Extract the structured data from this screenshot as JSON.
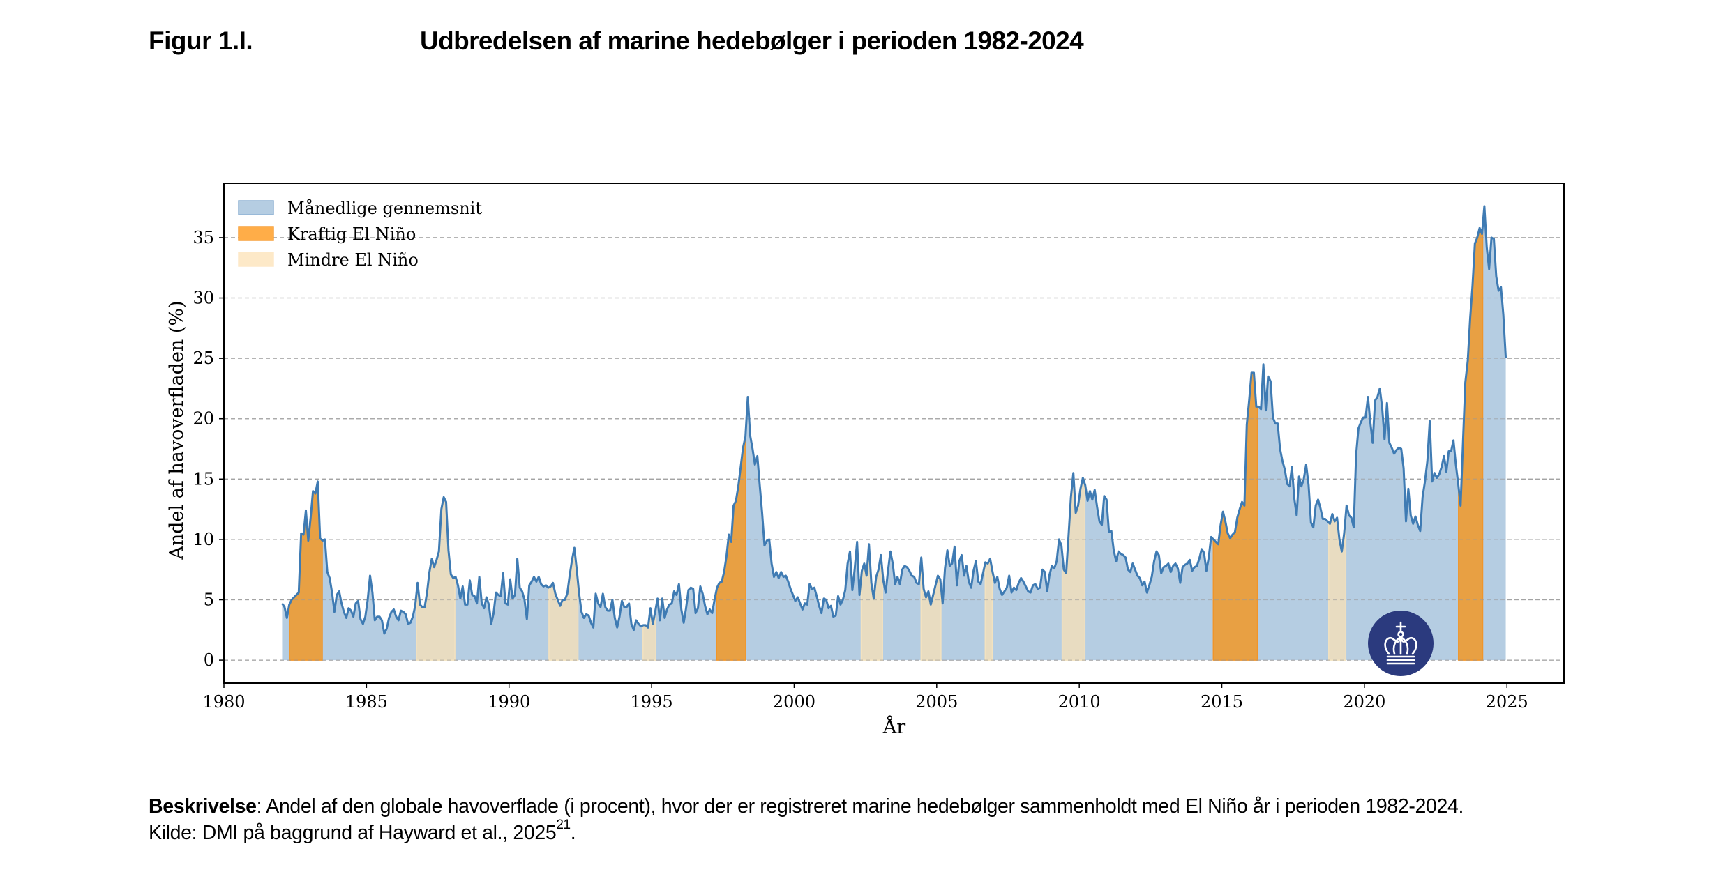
{
  "header": {
    "figure_label": "Figur 1.I.",
    "figure_title": "Udbredelsen af marine hedebølger i perioden 1982-2024"
  },
  "caption": {
    "description_label": "Beskrivelse",
    "description_text": ": Andel af den globale havoverflade (i procent), hvor der er registreret marine hedebølger sammenholdt med El Niño år i perioden 1982-2024.",
    "source_text": "Kilde: DMI på baggrund af Hayward et al., 2025",
    "source_ref": "21",
    "source_end": "."
  },
  "logo": {
    "name": "crown-logo",
    "color": "#2b3a7e"
  },
  "colors": {
    "line": "#3f7bb3",
    "area": "#b5cde2",
    "strong": "#e8a043",
    "weak": "#e8dcc1",
    "legend_strong": "#ffad48",
    "legend_weak": "#fde9c8",
    "legend_area": "#b5cde2",
    "grid": "#b0b0b0"
  },
  "chart_data": {
    "type": "area",
    "title": "",
    "xlabel": "År",
    "ylabel": "Andel af havoverfladen (%)",
    "xlim": [
      1980,
      2027
    ],
    "ylim": [
      -1.9,
      39.5
    ],
    "xticks": [
      1980,
      1985,
      1990,
      1995,
      2000,
      2005,
      2010,
      2015,
      2020,
      2025
    ],
    "xtick_labels": [
      "1980",
      "1985",
      "1990",
      "1995",
      "2000",
      "2005",
      "2010",
      "2015",
      "2020",
      "2025"
    ],
    "yticks": [
      0,
      5,
      10,
      15,
      20,
      25,
      30,
      35
    ],
    "ytick_labels": [
      "0",
      "5",
      "10",
      "15",
      "20",
      "25",
      "30",
      "35"
    ],
    "grid": "horizontal dashed",
    "legend_position": "top-left",
    "legend": [
      {
        "key": "monthly",
        "label": "Månedlige gennemsnit"
      },
      {
        "key": "strong",
        "label": "Kraftig El Niño"
      },
      {
        "key": "weak",
        "label": "Mindre El Niño"
      }
    ],
    "x_start": 1982.0,
    "x_step_months": 1,
    "series": [
      {
        "name": "Månedlige gennemsnit",
        "values": [
          4.7,
          4.4,
          3.5,
          4.6,
          5.0,
          5.2,
          5.4,
          5.6,
          10.5,
          10.4,
          12.4,
          9.9,
          11.8,
          14.0,
          13.8,
          14.8,
          10.1,
          9.9,
          10.0,
          7.3,
          6.8,
          5.6,
          4.0,
          5.4,
          5.7,
          4.7,
          4.0,
          3.5,
          4.3,
          4.1,
          3.6,
          4.7,
          4.9,
          3.4,
          3.0,
          3.6,
          5.0,
          7.0,
          5.6,
          3.3,
          3.6,
          3.6,
          3.3,
          2.2,
          2.6,
          3.5,
          4.0,
          4.2,
          3.6,
          3.3,
          4.1,
          4.0,
          3.8,
          3.0,
          3.1,
          3.6,
          4.5,
          6.4,
          4.6,
          4.4,
          4.4,
          5.6,
          7.3,
          8.4,
          7.7,
          8.3,
          9.0,
          12.5,
          13.5,
          13.1,
          9.1,
          7.1,
          6.8,
          6.9,
          6.2,
          5.1,
          6.1,
          4.6,
          4.6,
          6.6,
          5.4,
          5.3,
          4.7,
          6.9,
          4.7,
          4.3,
          5.2,
          4.6,
          3.0,
          3.9,
          5.6,
          5.4,
          5.3,
          7.2,
          4.7,
          4.6,
          6.7,
          5.1,
          5.4,
          8.4,
          6.0,
          5.7,
          5.0,
          3.4,
          6.2,
          6.5,
          6.9,
          6.5,
          6.9,
          6.3,
          6.1,
          6.2,
          6.0,
          6.1,
          6.4,
          5.5,
          5.0,
          4.5,
          5.0,
          5.0,
          5.5,
          7.0,
          8.3,
          9.3,
          7.5,
          5.5,
          4.0,
          3.5,
          3.8,
          3.7,
          3.1,
          2.7,
          5.5,
          4.7,
          4.4,
          5.5,
          4.4,
          4.1,
          4.1,
          5.0,
          3.5,
          2.7,
          3.6,
          4.9,
          4.4,
          4.4,
          4.7,
          3.0,
          2.5,
          3.3,
          3.0,
          2.8,
          2.9,
          2.9,
          2.7,
          4.3,
          3.0,
          4.0,
          5.1,
          3.3,
          5.1,
          3.5,
          4.2,
          4.6,
          4.7,
          5.7,
          5.4,
          6.3,
          4.2,
          3.1,
          4.3,
          5.8,
          6.0,
          5.9,
          3.9,
          4.3,
          6.1,
          5.5,
          4.5,
          3.8,
          4.2,
          3.9,
          5.0,
          6.0,
          6.4,
          6.5,
          7.3,
          8.6,
          10.4,
          9.8,
          12.8,
          13.2,
          14.4,
          16.0,
          17.6,
          18.5,
          21.8,
          18.6,
          17.5,
          16.2,
          16.9,
          14.5,
          12.2,
          9.5,
          9.9,
          10.0,
          8.0,
          6.9,
          7.3,
          6.8,
          7.3,
          6.9,
          7.0,
          6.5,
          5.9,
          5.4,
          4.9,
          5.2,
          4.7,
          4.2,
          4.7,
          4.6,
          6.3,
          5.9,
          6.0,
          5.3,
          4.5,
          3.9,
          5.1,
          5.0,
          4.3,
          4.5,
          3.6,
          3.7,
          5.3,
          4.6,
          5.0,
          5.8,
          8.0,
          9.0,
          5.8,
          7.6,
          9.8,
          5.4,
          7.4,
          8.0,
          7.0,
          9.6,
          6.4,
          5.1,
          6.9,
          7.5,
          8.7,
          6.6,
          5.6,
          7.4,
          9.0,
          8.0,
          6.3,
          6.9,
          6.3,
          7.5,
          7.8,
          7.7,
          7.4,
          7.0,
          6.9,
          6.4,
          6.3,
          8.5,
          5.9,
          5.2,
          5.7,
          4.6,
          5.4,
          6.2,
          7.0,
          6.7,
          4.7,
          7.6,
          9.1,
          7.8,
          8.0,
          9.4,
          6.2,
          8.2,
          8.7,
          7.0,
          7.8,
          6.5,
          6.0,
          7.4,
          8.2,
          6.5,
          6.3,
          7.2,
          8.1,
          8.0,
          8.4,
          7.3,
          6.4,
          6.9,
          5.9,
          5.4,
          5.7,
          6.0,
          7.0,
          5.6,
          6.0,
          5.8,
          6.4,
          6.8,
          6.5,
          6.1,
          5.7,
          5.6,
          6.2,
          6.3,
          5.9,
          6.0,
          7.5,
          7.3,
          5.7,
          7.1,
          7.8,
          7.6,
          8.2,
          10.0,
          9.5,
          7.5,
          7.2,
          10.3,
          13.5,
          15.5,
          12.2,
          12.8,
          14.2,
          15.1,
          14.5,
          13.2,
          14.0,
          13.3,
          14.1,
          12.7,
          11.5,
          11.2,
          13.6,
          13.3,
          10.6,
          10.7,
          9.1,
          8.2,
          9.0,
          8.8,
          8.7,
          8.5,
          7.5,
          7.3,
          8.0,
          7.5,
          7.0,
          6.8,
          6.2,
          6.5,
          5.6,
          6.2,
          6.9,
          8.2,
          9.0,
          8.7,
          7.2,
          7.7,
          7.8,
          8.0,
          7.3,
          7.8,
          8.0,
          7.6,
          6.4,
          7.7,
          7.9,
          8.0,
          8.3,
          7.4,
          7.7,
          7.8,
          8.4,
          9.2,
          8.9,
          7.4,
          8.5,
          10.2,
          10.0,
          9.8,
          9.6,
          11.2,
          12.3,
          11.5,
          10.5,
          10.1,
          10.4,
          10.6,
          11.8,
          12.5,
          13.1,
          12.8,
          19.5,
          21.5,
          23.8,
          23.8,
          21.0,
          21.0,
          20.8,
          24.5,
          20.7,
          23.5,
          23.1,
          20.1,
          19.6,
          19.6,
          17.5,
          16.5,
          15.8,
          14.6,
          14.4,
          16.0,
          13.4,
          12.0,
          15.2,
          14.4,
          15.0,
          16.2,
          14.5,
          11.4,
          11.0,
          12.8,
          13.3,
          12.6,
          11.7,
          11.7,
          11.5,
          11.3,
          12.1,
          11.5,
          11.8,
          10.0,
          9.0,
          10.5,
          12.8,
          12.0,
          11.8,
          11.0,
          17.0,
          19.2,
          19.7,
          20.1,
          20.1,
          21.8,
          19.7,
          18.0,
          21.5,
          21.8,
          22.5,
          20.9,
          18.3,
          21.3,
          18.0,
          17.6,
          17.1,
          17.4,
          17.6,
          17.5,
          15.9,
          11.5,
          14.2,
          12.0,
          11.3,
          11.9,
          11.2,
          10.7,
          13.5,
          14.8,
          16.5,
          19.8,
          14.8,
          15.5,
          15.1,
          15.4,
          16.0,
          16.9,
          15.6,
          17.3,
          17.3,
          18.2,
          16.2,
          14.6,
          12.8,
          18.0,
          23.0,
          24.8,
          28.3,
          31.0,
          34.5,
          35.0,
          35.8,
          35.3,
          37.6,
          34.2,
          32.4,
          35.0,
          34.9,
          31.8,
          30.6,
          30.9,
          28.6,
          25.0
        ]
      }
    ],
    "el_nino_periods": [
      {
        "type": "strong",
        "start": 1982.3,
        "end": 1983.45
      },
      {
        "type": "weak",
        "start": 1986.75,
        "end": 1988.1
      },
      {
        "type": "weak",
        "start": 1991.4,
        "end": 1992.42
      },
      {
        "type": "weak",
        "start": 1994.7,
        "end": 1995.15
      },
      {
        "type": "strong",
        "start": 1997.28,
        "end": 1998.3
      },
      {
        "type": "weak",
        "start": 2002.35,
        "end": 2003.1
      },
      {
        "type": "weak",
        "start": 2004.45,
        "end": 2005.15
      },
      {
        "type": "weak",
        "start": 2006.7,
        "end": 2006.95
      },
      {
        "type": "weak",
        "start": 2009.4,
        "end": 2010.2
      },
      {
        "type": "strong",
        "start": 2014.7,
        "end": 2016.25
      },
      {
        "type": "weak",
        "start": 2018.75,
        "end": 2019.35
      },
      {
        "type": "strong",
        "start": 2023.3,
        "end": 2024.15
      }
    ]
  }
}
